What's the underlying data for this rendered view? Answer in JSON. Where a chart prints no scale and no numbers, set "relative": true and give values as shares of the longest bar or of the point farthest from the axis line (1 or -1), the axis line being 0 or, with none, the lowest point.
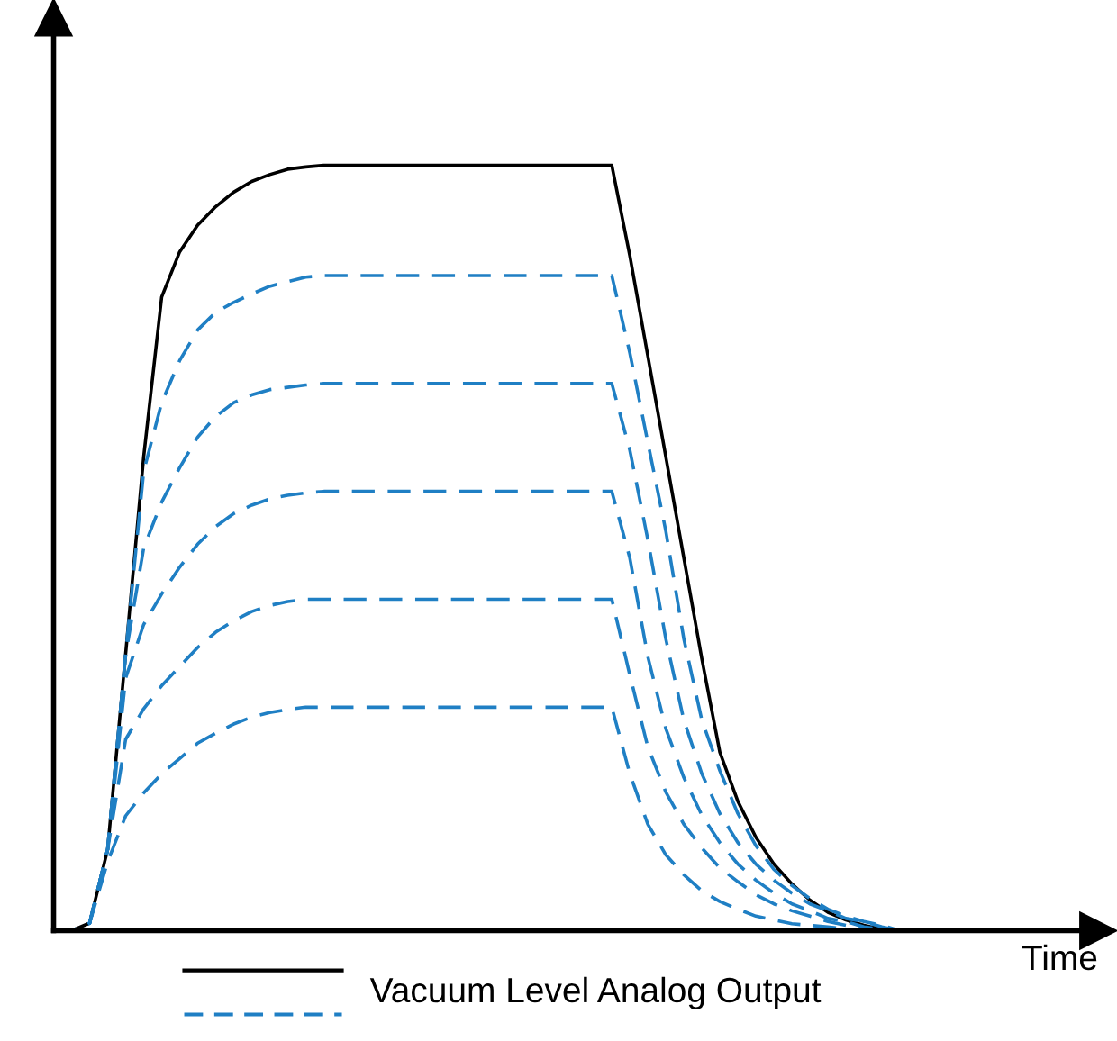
{
  "chart_data": {
    "type": "line",
    "relative": true,
    "xlabel": "Time",
    "legend": "bottom",
    "grid": false,
    "marker": "none",
    "categories": [
      null,
      null,
      null,
      null,
      null,
      null,
      null,
      null,
      null,
      null,
      null,
      null,
      null,
      null,
      null,
      null,
      null,
      null,
      null,
      null,
      null,
      null,
      null,
      null,
      null,
      null,
      null,
      null,
      null,
      null,
      null,
      null,
      null,
      null,
      null,
      null,
      null,
      null,
      null,
      null,
      null,
      null,
      null,
      null,
      null,
      null,
      null,
      null,
      null
    ],
    "series": [
      {
        "name": "Vacuum Level Analog Output",
        "color": "#000000",
        "line_style": "solid",
        "values": [
          0,
          0,
          0.01,
          0.106,
          0.362,
          0.619,
          0.828,
          0.887,
          0.922,
          0.946,
          0.965,
          0.979,
          0.988,
          0.995,
          0.998,
          1,
          1,
          1,
          1,
          1,
          1,
          1,
          1,
          1,
          1,
          1,
          1,
          1,
          1,
          1,
          1,
          1,
          0.882,
          0.751,
          0.619,
          0.487,
          0.355,
          0.233,
          0.169,
          0.122,
          0.087,
          0.061,
          0.04,
          0.024,
          0.014,
          0.007,
          0.002,
          0,
          0
        ]
      },
      {
        "color": "#1f7fc4",
        "line_style": "dashed",
        "values": [
          0,
          0,
          0.01,
          0.106,
          0.362,
          0.6,
          0.69,
          0.745,
          0.785,
          0.808,
          0.821,
          0.832,
          0.842,
          0.848,
          0.854,
          0.856,
          0.856,
          0.856,
          0.856,
          0.856,
          0.856,
          0.856,
          0.856,
          0.856,
          0.856,
          0.856,
          0.856,
          0.856,
          0.856,
          0.856,
          0.856,
          0.856,
          0.755,
          0.638,
          0.522,
          0.381,
          0.275,
          0.209,
          0.153,
          0.111,
          0.08,
          0.059,
          0.042,
          0.028,
          0.019,
          0.012,
          0.007,
          0,
          0
        ]
      },
      {
        "color": "#1f7fc4",
        "line_style": "dashed",
        "values": [
          0,
          0,
          0.01,
          0.106,
          0.36,
          0.5,
          0.56,
          0.605,
          0.645,
          0.672,
          0.69,
          0.7,
          0.707,
          0.71,
          0.713,
          0.715,
          0.715,
          0.715,
          0.715,
          0.715,
          0.715,
          0.715,
          0.715,
          0.715,
          0.715,
          0.715,
          0.715,
          0.715,
          0.715,
          0.715,
          0.715,
          0.715,
          0.628,
          0.511,
          0.381,
          0.275,
          0.205,
          0.153,
          0.115,
          0.087,
          0.066,
          0.049,
          0.035,
          0.026,
          0.016,
          0.012,
          0.005,
          0,
          0
        ]
      },
      {
        "color": "#1f7fc4",
        "line_style": "dashed",
        "values": [
          0,
          0,
          0.01,
          0.106,
          0.33,
          0.4,
          0.44,
          0.475,
          0.505,
          0.528,
          0.545,
          0.556,
          0.564,
          0.569,
          0.572,
          0.574,
          0.574,
          0.574,
          0.574,
          0.574,
          0.574,
          0.574,
          0.574,
          0.574,
          0.574,
          0.574,
          0.574,
          0.574,
          0.574,
          0.574,
          0.574,
          0.574,
          0.487,
          0.358,
          0.264,
          0.2,
          0.151,
          0.115,
          0.087,
          0.066,
          0.049,
          0.035,
          0.026,
          0.016,
          0.012,
          0.005,
          0.002,
          0,
          0
        ]
      },
      {
        "color": "#1f7fc4",
        "line_style": "dashed",
        "values": [
          0,
          0,
          0.01,
          0.106,
          0.25,
          0.29,
          0.32,
          0.345,
          0.37,
          0.39,
          0.405,
          0.417,
          0.425,
          0.43,
          0.433,
          0.433,
          0.433,
          0.433,
          0.433,
          0.433,
          0.433,
          0.433,
          0.433,
          0.433,
          0.433,
          0.433,
          0.433,
          0.433,
          0.433,
          0.433,
          0.433,
          0.433,
          0.334,
          0.24,
          0.181,
          0.139,
          0.108,
          0.082,
          0.064,
          0.047,
          0.035,
          0.026,
          0.019,
          0.012,
          0.007,
          0.003,
          0,
          0,
          0
        ]
      },
      {
        "color": "#1f7fc4",
        "line_style": "dashed",
        "values": [
          0,
          0,
          0.01,
          0.09,
          0.15,
          0.18,
          0.205,
          0.225,
          0.245,
          0.258,
          0.27,
          0.279,
          0.285,
          0.289,
          0.292,
          0.292,
          0.292,
          0.292,
          0.292,
          0.292,
          0.292,
          0.292,
          0.292,
          0.292,
          0.292,
          0.292,
          0.292,
          0.292,
          0.292,
          0.292,
          0.292,
          0.292,
          0.205,
          0.139,
          0.099,
          0.073,
          0.052,
          0.038,
          0.028,
          0.019,
          0.014,
          0.009,
          0.007,
          0.005,
          0.002,
          0,
          0,
          0,
          0
        ]
      }
    ]
  }
}
